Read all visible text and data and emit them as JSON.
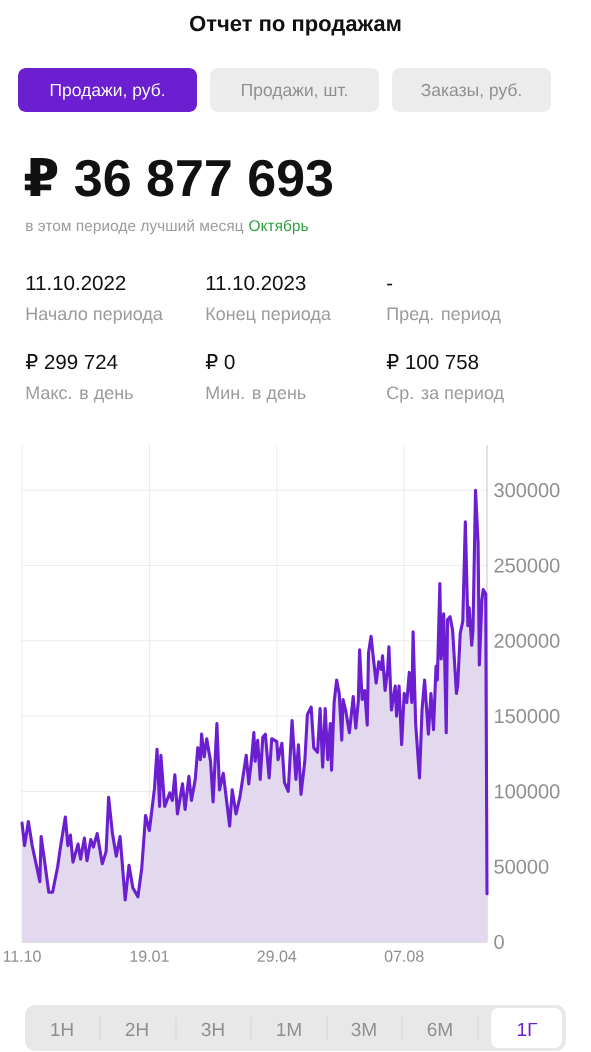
{
  "chart_data": {
    "type": "area",
    "title": "Отчет по продажам",
    "annotations": [
      "Продажи, руб.",
      "Продажи, шт.",
      "Заказы, руб.",
      "₽ 36 877 693",
      "в этом периоде лучший месяц",
      "Октябрь",
      "11.10.2022",
      "Начало периода",
      "11.10.2023",
      "Конец периода",
      "-",
      "Пред. период",
      "₽ 299 724",
      "Макс. в день",
      "₽ 0",
      "Мин. в день",
      "₽ 100 758",
      "Ср. за период",
      "1Н",
      "2Н",
      "3Н",
      "1М",
      "3М",
      "6М",
      "1Г"
    ],
    "x": [
      "2022-10-11",
      "2022-10-13",
      "2022-10-16",
      "2022-10-19",
      "2022-10-23",
      "2022-10-25",
      "2022-10-26",
      "2022-10-29",
      "2022-11-01",
      "2022-11-04",
      "2022-11-08",
      "2022-11-10",
      "2022-11-14",
      "2022-11-16",
      "2022-11-18",
      "2022-11-20",
      "2022-11-24",
      "2022-11-26",
      "2022-11-29",
      "2022-12-01",
      "2022-12-04",
      "2022-12-06",
      "2022-12-09",
      "2022-12-13",
      "2022-12-16",
      "2022-12-18",
      "2022-12-21",
      "2022-12-24",
      "2022-12-27",
      "2022-12-31",
      "2023-01-03",
      "2023-01-06",
      "2023-01-10",
      "2023-01-13",
      "2023-01-16",
      "2023-01-19",
      "2023-01-23",
      "2023-01-25",
      "2023-01-27",
      "2023-01-28",
      "2023-01-31",
      "2023-02-04",
      "2023-02-06",
      "2023-02-08",
      "2023-02-10",
      "2023-02-14",
      "2023-02-16",
      "2023-02-19",
      "2023-02-21",
      "2023-02-24",
      "2023-02-26",
      "2023-02-28",
      "2023-03-01",
      "2023-03-03",
      "2023-03-05",
      "2023-03-08",
      "2023-03-10",
      "2023-03-13",
      "2023-03-15",
      "2023-03-18",
      "2023-03-23",
      "2023-03-25",
      "2023-03-28",
      "2023-03-31",
      "2023-04-05",
      "2023-04-07",
      "2023-04-09",
      "2023-04-11",
      "2023-04-12",
      "2023-04-14",
      "2023-04-16",
      "2023-04-18",
      "2023-04-20",
      "2023-04-23",
      "2023-04-25",
      "2023-04-29",
      "2023-04-30",
      "2023-05-03",
      "2023-05-05",
      "2023-05-08",
      "2023-05-11",
      "2023-05-14",
      "2023-05-16",
      "2023-05-18",
      "2023-05-21",
      "2023-05-23",
      "2023-05-26",
      "2023-05-28",
      "2023-05-31",
      "2023-06-02",
      "2023-06-04",
      "2023-06-06",
      "2023-06-08",
      "2023-06-10",
      "2023-06-11",
      "2023-06-13",
      "2023-06-15",
      "2023-06-17",
      "2023-06-19",
      "2023-06-20",
      "2023-06-22",
      "2023-06-25",
      "2023-06-28",
      "2023-06-30",
      "2023-07-02",
      "2023-07-03",
      "2023-07-05",
      "2023-07-07",
      "2023-07-09",
      "2023-07-10",
      "2023-07-12",
      "2023-07-14",
      "2023-07-16",
      "2023-07-18",
      "2023-07-20",
      "2023-07-21",
      "2023-07-23",
      "2023-07-25",
      "2023-07-26",
      "2023-07-28",
      "2023-07-31",
      "2023-08-01",
      "2023-08-03",
      "2023-08-05",
      "2023-08-07",
      "2023-08-09",
      "2023-08-11",
      "2023-08-13",
      "2023-08-14",
      "2023-08-16",
      "2023-08-19",
      "2023-08-21",
      "2023-08-23",
      "2023-08-26",
      "2023-08-28",
      "2023-08-30",
      "2023-09-01",
      "2023-09-02",
      "2023-09-04",
      "2023-09-05",
      "2023-09-07",
      "2023-09-09",
      "2023-09-10",
      "2023-09-12",
      "2023-09-14",
      "2023-09-17",
      "2023-09-18",
      "2023-09-20",
      "2023-09-22",
      "2023-09-24",
      "2023-09-26",
      "2023-09-27",
      "2023-09-29",
      "2023-09-30",
      "2023-10-02",
      "2023-10-04",
      "2023-10-05",
      "2023-10-07",
      "2023-10-08",
      "2023-10-10",
      "2023-10-11"
    ],
    "values": [
      79000,
      64000,
      80000,
      64000,
      48000,
      40000,
      70000,
      52000,
      33000,
      33000,
      50000,
      62000,
      83000,
      64000,
      71000,
      53000,
      65000,
      55000,
      69000,
      54000,
      68000,
      63000,
      72000,
      52000,
      60000,
      96000,
      72000,
      57000,
      70000,
      28000,
      51000,
      36000,
      30000,
      49000,
      84000,
      74000,
      102000,
      128000,
      90000,
      124000,
      90000,
      99000,
      94000,
      111000,
      85000,
      105000,
      88000,
      110000,
      94000,
      108000,
      129000,
      121000,
      138000,
      123000,
      135000,
      120000,
      93000,
      145000,
      101000,
      112000,
      77000,
      101000,
      85000,
      96000,
      124000,
      105000,
      120000,
      139000,
      120000,
      134000,
      108000,
      136000,
      138000,
      109000,
      135000,
      133000,
      121000,
      132000,
      106000,
      100000,
      147000,
      108000,
      131000,
      98000,
      120000,
      151000,
      156000,
      129000,
      126000,
      155000,
      116000,
      155000,
      121000,
      145000,
      114000,
      159000,
      174000,
      165000,
      134000,
      161000,
      154000,
      139000,
      163000,
      142000,
      160000,
      194000,
      161000,
      167000,
      144000,
      192000,
      203000,
      187000,
      172000,
      186000,
      181000,
      190000,
      167000,
      181000,
      196000,
      154000,
      170000,
      150000,
      170000,
      131000,
      165000,
      159000,
      179000,
      159000,
      206000,
      145000,
      109000,
      154000,
      174000,
      138000,
      165000,
      141000,
      183000,
      174000,
      238000,
      188000,
      218000,
      139000,
      214000,
      216000,
      207000,
      165000,
      170000,
      205000,
      213000,
      279000,
      210000,
      222000,
      197000,
      207000,
      300000,
      265000,
      184000,
      227000,
      234000,
      231000,
      32000
    ],
    "color": "#6b1fd1",
    "xlim": [
      "2022-10-11",
      "2023-10-11"
    ],
    "ylim": [
      0,
      330000
    ],
    "xticks": [
      {
        "value": "2022-10-11",
        "label": "11.10"
      },
      {
        "value": "2023-01-19",
        "label": "19.01"
      },
      {
        "value": "2023-04-29",
        "label": "29.04"
      },
      {
        "value": "2023-08-07",
        "label": "07.08"
      }
    ],
    "yticks": [
      0,
      50000,
      100000,
      150000,
      200000,
      250000,
      300000
    ],
    "grid": true
  }
}
